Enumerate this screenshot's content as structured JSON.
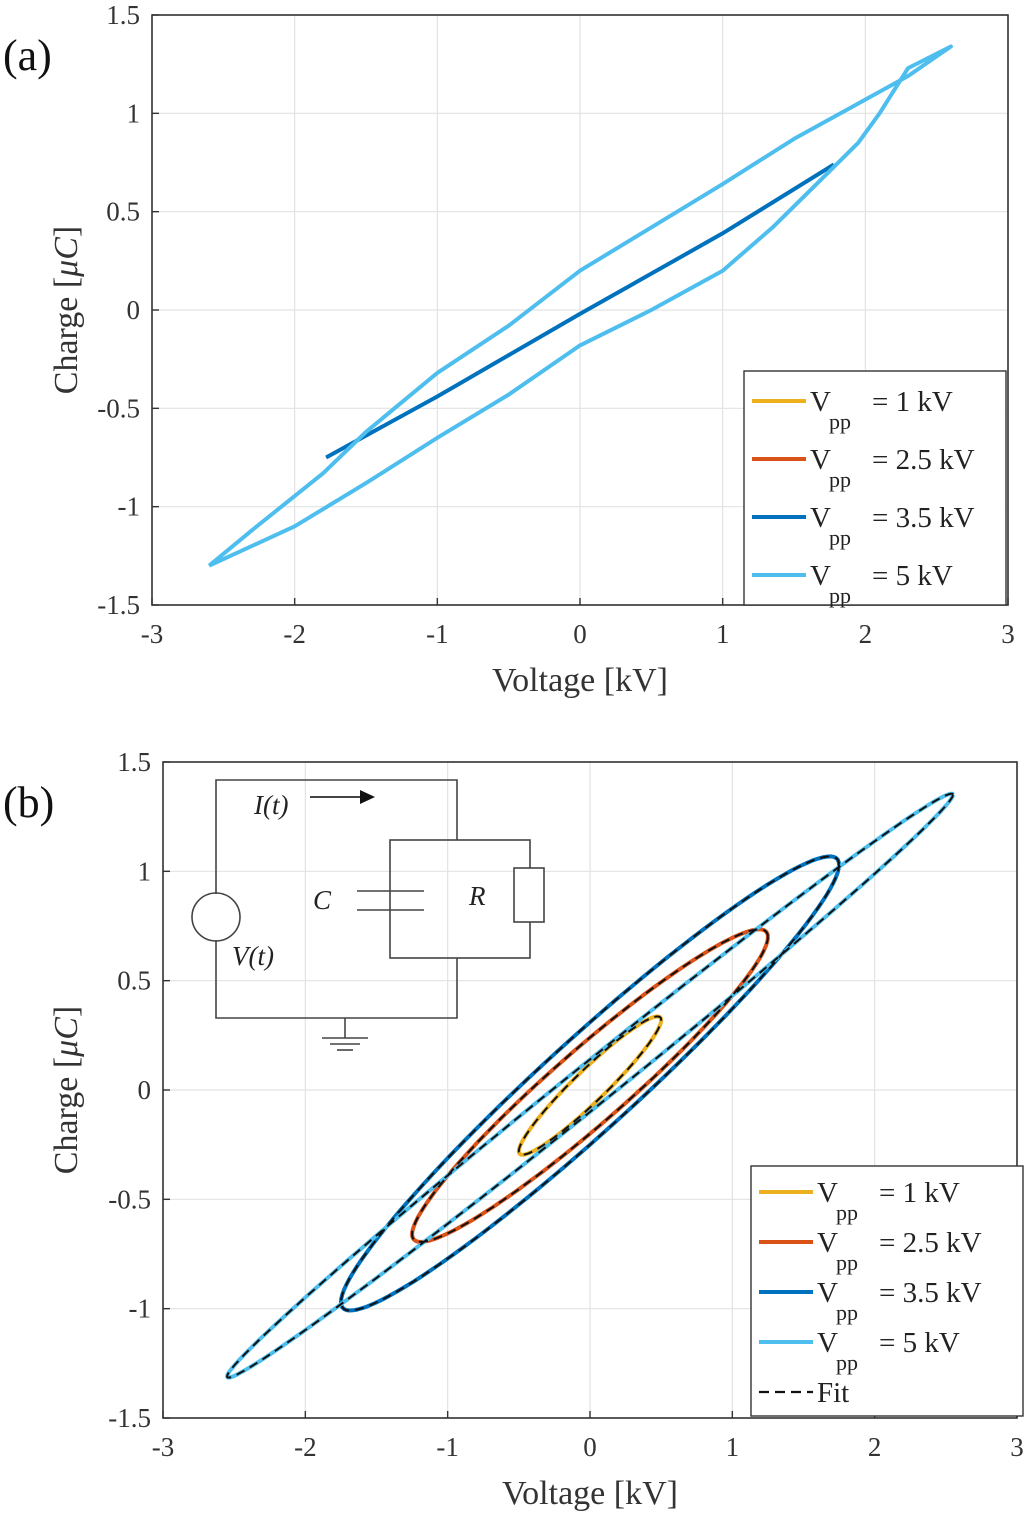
{
  "chart_data": [
    {
      "panel_label": "(a)",
      "type": "line",
      "xlabel": "Voltage [kV]",
      "ylabel": "Charge [μC]",
      "ylabel_parts": [
        "Charge [",
        "μC",
        "]"
      ],
      "xlim": [
        -3,
        3
      ],
      "ylim": [
        -1.5,
        1.5
      ],
      "xticks": [
        -3,
        -2,
        -1,
        0,
        1,
        2,
        3
      ],
      "yticks": [
        -1.5,
        -1,
        -0.5,
        0,
        0.5,
        1,
        1.5
      ],
      "grid": true,
      "legend_position": "bottom-right",
      "series": [
        {
          "label": "V",
          "sub": "pp",
          "value": "= 1 kV",
          "color": "#EDB120",
          "dashed": false,
          "points": []
        },
        {
          "label": "V",
          "sub": "pp",
          "value": "= 2.5 kV",
          "color": "#D95319",
          "dashed": false,
          "points": []
        },
        {
          "label": "V",
          "sub": "pp",
          "value": "= 3.5 kV",
          "color": "#0072BD",
          "dashed": false,
          "points": [
            [
              -1.78,
              -0.75
            ],
            [
              -1.0,
              -0.44
            ],
            [
              0.0,
              -0.02
            ],
            [
              1.0,
              0.39
            ],
            [
              1.78,
              0.74
            ]
          ]
        },
        {
          "label": "V",
          "sub": "pp",
          "value": "= 5 kV",
          "color": "#4DBEEE",
          "dashed": false,
          "points": [
            [
              -2.6,
              -1.3
            ],
            [
              -2.3,
              -1.12
            ],
            [
              -1.8,
              -0.83
            ],
            [
              -1.5,
              -0.62
            ],
            [
              -1.0,
              -0.32
            ],
            [
              -0.5,
              -0.08
            ],
            [
              0.0,
              0.2
            ],
            [
              0.5,
              0.42
            ],
            [
              1.0,
              0.64
            ],
            [
              1.5,
              0.87
            ],
            [
              2.0,
              1.07
            ],
            [
              2.3,
              1.19
            ],
            [
              2.6,
              1.34
            ],
            [
              2.3,
              1.23
            ],
            [
              2.1,
              1.0
            ],
            [
              1.95,
              0.85
            ],
            [
              1.7,
              0.67
            ],
            [
              1.35,
              0.42
            ],
            [
              1.0,
              0.2
            ],
            [
              0.5,
              0.0
            ],
            [
              0.0,
              -0.18
            ],
            [
              -0.5,
              -0.43
            ],
            [
              -1.0,
              -0.65
            ],
            [
              -1.5,
              -0.88
            ],
            [
              -2.0,
              -1.1
            ],
            [
              -2.6,
              -1.3
            ]
          ]
        }
      ]
    },
    {
      "panel_label": "(b)",
      "type": "line",
      "xlabel": "Voltage [kV]",
      "ylabel": "Charge [μC]",
      "ylabel_parts": [
        "Charge [",
        "μC",
        "]"
      ],
      "xlim": [
        -3,
        3
      ],
      "ylim": [
        -1.5,
        1.5
      ],
      "xticks": [
        -3,
        -2,
        -1,
        0,
        1,
        2,
        3
      ],
      "yticks": [
        -1.5,
        -1,
        -0.5,
        0,
        0.5,
        1,
        1.5
      ],
      "grid": true,
      "legend_position": "bottom-right",
      "series": [
        {
          "label": "V",
          "sub": "pp",
          "value": "= 1 kV",
          "color": "#EDB120",
          "dashed": false,
          "ellipse": {
            "a": 0.5,
            "b": 0.3,
            "c": 0.02,
            "d": 0.1
          }
        },
        {
          "label": "V",
          "sub": "pp",
          "value": "= 2.5 kV",
          "color": "#D95319",
          "dashed": false,
          "ellipse": {
            "a": 1.25,
            "b": 0.68,
            "c": 0.02,
            "d": 0.22
          }
        },
        {
          "label": "V",
          "sub": "pp",
          "value": "= 3.5 kV",
          "color": "#0072BD",
          "dashed": false,
          "ellipse": {
            "a": 1.75,
            "b": 1.0,
            "c": 0.03,
            "d": 0.28
          }
        },
        {
          "label": "V",
          "sub": "pp",
          "value": "= 5 kV",
          "color": "#4DBEEE",
          "dashed": false,
          "ellipse": {
            "a": 2.55,
            "b": 1.33,
            "c": 0.02,
            "d": 0.12
          }
        },
        {
          "label": "Fit",
          "sub": "",
          "value": "",
          "color": "#111111",
          "dashed": true,
          "fit": true
        }
      ],
      "inset_circuit": {
        "current_label": "I(t)",
        "source_label": "V(t)",
        "capacitor_label": "C",
        "resistor_label": "R"
      }
    }
  ]
}
